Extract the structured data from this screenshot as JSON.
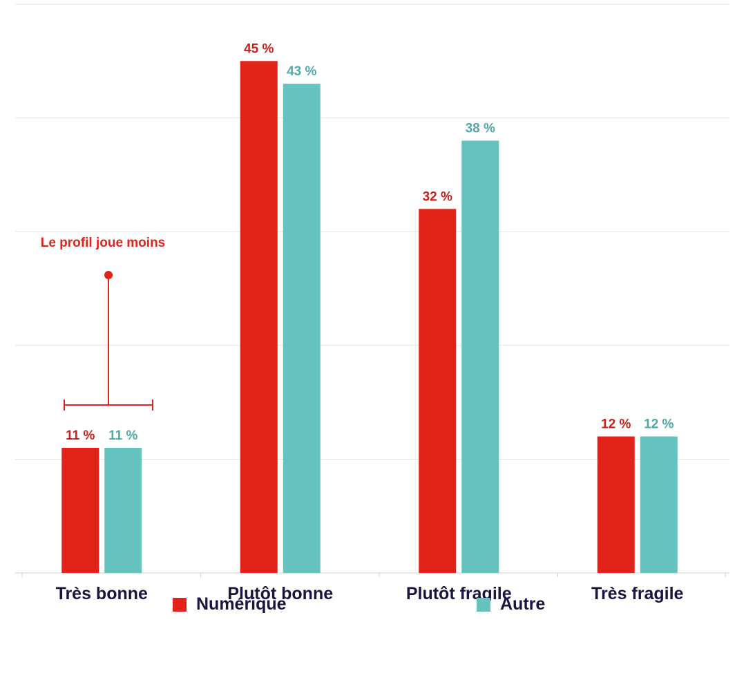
{
  "chart_data": {
    "type": "bar",
    "categories": [
      "Très bonne",
      "Plutôt bonne",
      "Plutôt fragile",
      "Très fragile"
    ],
    "series": [
      {
        "name": "Numérique",
        "color": "#e2231a",
        "values": [
          11,
          45,
          32,
          12
        ],
        "labels": [
          "11 %",
          "45 %",
          "32 %",
          "12 %"
        ]
      },
      {
        "name": "Autre",
        "color": "#66c2bf",
        "values": [
          11,
          43,
          38,
          12
        ],
        "labels": [
          "11 %",
          "43 %",
          "38 %",
          "12 %"
        ]
      }
    ],
    "ylim": [
      0,
      50
    ],
    "grid": true,
    "legend_position": "bottom",
    "annotation": {
      "text": "Le profil joue moins",
      "category": "Très bonne",
      "color": "#e2231a"
    }
  },
  "colors": {
    "axis_text": "#1b1340",
    "grid": "#e3e3e3"
  }
}
